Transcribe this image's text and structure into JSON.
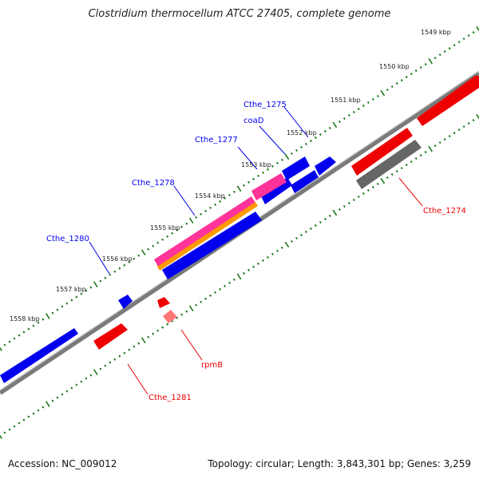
{
  "title": "Clostridium thermocellum ATCC 27405, complete genome",
  "footer": {
    "accession": "Accession: NC_009012",
    "summary": "Topology: circular; Length: 3,843,301 bp; Genes: 3,259"
  },
  "colors": {
    "forward": "#0000ee",
    "reverse": "#ee0000",
    "pseudo": "#666666",
    "rna": "#ff3399",
    "orange": "#ff9900",
    "backbone": "#808080",
    "ticks": "#1b7a1b"
  },
  "scale_labels": [
    "1549 kbp",
    "1550 kbp",
    "1551 kbp",
    "1552 kbp",
    "1553 kbp",
    "1554 kbp",
    "1555 kbp",
    "1556 kbp",
    "1557 kbp",
    "1558 kbp"
  ],
  "gene_labels_blue": [
    "Cthe_1275",
    "coaD",
    "Cthe_1277",
    "Cthe_1278",
    "Cthe_1280"
  ],
  "gene_labels_red": [
    "Cthe_1274",
    "rpmB",
    "Cthe_1281"
  ]
}
